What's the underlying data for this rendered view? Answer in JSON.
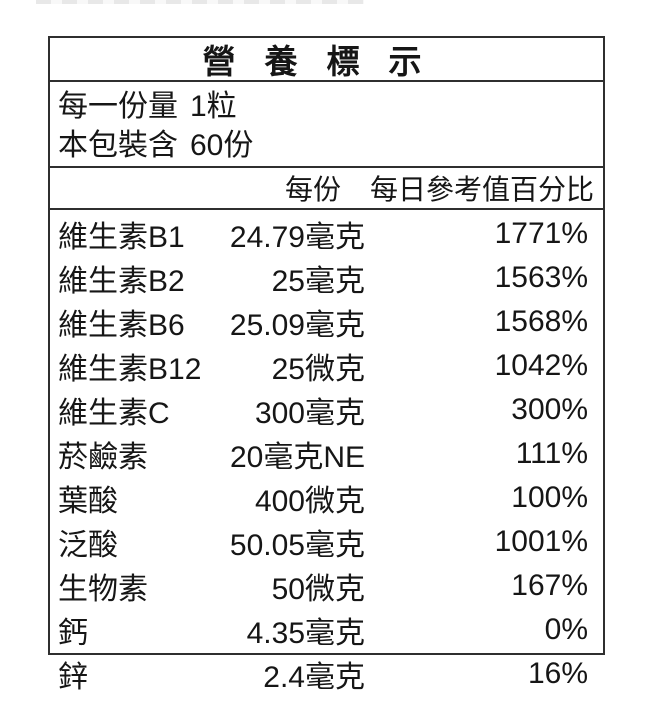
{
  "label": {
    "title": "營養標示",
    "serving": [
      {
        "label": "每一份量",
        "value": "1粒"
      },
      {
        "label": "本包裝含",
        "value": "60份"
      }
    ],
    "columns": {
      "per_serving": "每份",
      "daily_value_pct": "每日參考值百分比"
    },
    "rows": [
      {
        "name": "維生素B1",
        "amount": "24.79毫克",
        "dv": "1771%"
      },
      {
        "name": "維生素B2",
        "amount": "25毫克",
        "dv": "1563%"
      },
      {
        "name": "維生素B6",
        "amount": "25.09毫克",
        "dv": "1568%"
      },
      {
        "name": "維生素B12",
        "amount": "25微克",
        "dv": "1042%"
      },
      {
        "name": "維生素C",
        "amount": "300毫克",
        "dv": "300%"
      },
      {
        "name": "菸鹼素",
        "amount": "20毫克NE",
        "dv": "111%"
      },
      {
        "name": "葉酸",
        "amount": "400微克",
        "dv": "100%"
      },
      {
        "name": "泛酸",
        "amount": "50.05毫克",
        "dv": "1001%"
      },
      {
        "name": "生物素",
        "amount": "50微克",
        "dv": "167%"
      },
      {
        "name": "鈣",
        "amount": "4.35毫克",
        "dv": "0%"
      },
      {
        "name": "鋅",
        "amount": "2.4毫克",
        "dv": "16%"
      }
    ],
    "colors": {
      "border": "#2f2f2f",
      "text": "#161616",
      "background": "#ffffff"
    }
  }
}
